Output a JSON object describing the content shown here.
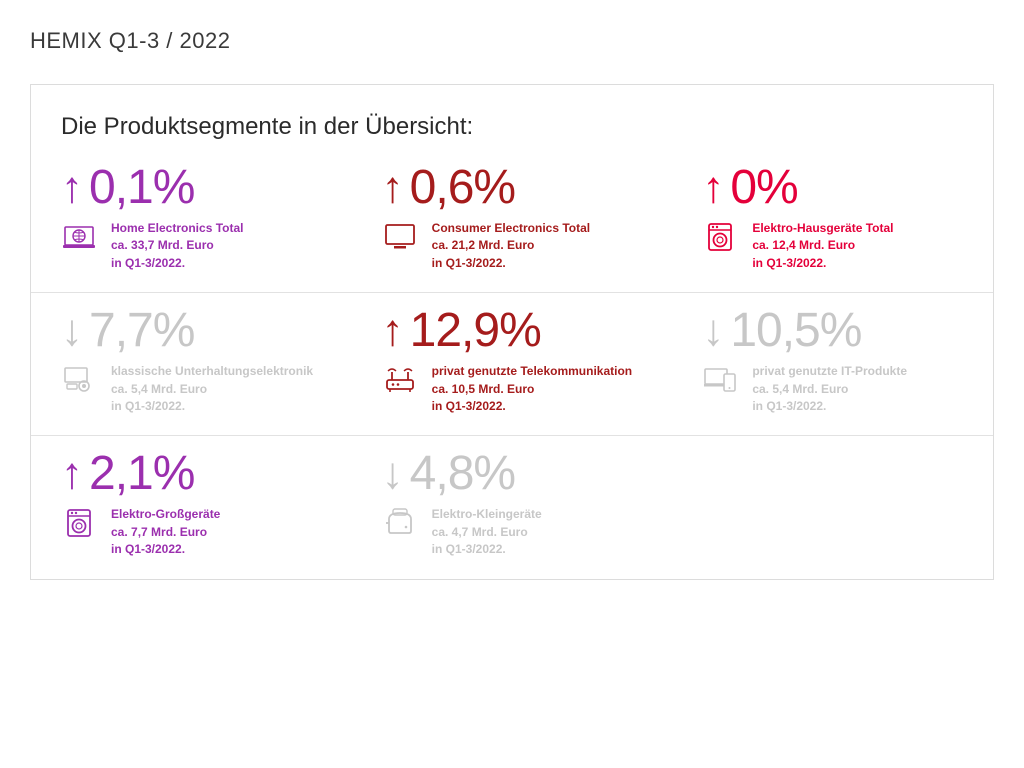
{
  "page_title": "HEMIX Q1-3 / 2022",
  "panel_title": "Die Produktsegmente in der Übersicht:",
  "colors": {
    "purple": "#9b2fae",
    "darkred": "#a51c1c",
    "pinkred": "#e4003a",
    "muted": "#c7c7c7",
    "text": "#2b2b2b",
    "border": "#dcdcdc"
  },
  "layout": {
    "type": "infographic",
    "grid": "3x3",
    "pct_fontsize": 48,
    "arrow_fontsize": 44,
    "desc_fontsize": 12,
    "title_fontsize": 24,
    "page_title_fontsize": 22
  },
  "segments": [
    {
      "id": "home-electronics-total",
      "direction": "up",
      "pct": "0,1%",
      "color": "#9b2fae",
      "icon": "globe-laptop",
      "line1": "Home Electronics Total",
      "line2": "ca. 33,7 Mrd. Euro",
      "line3": "in Q1-3/2022."
    },
    {
      "id": "consumer-electronics-total",
      "direction": "up",
      "pct": "0,6%",
      "color": "#a51c1c",
      "icon": "tv",
      "line1": "Consumer Electronics Total",
      "line2": "ca. 21,2 Mrd. Euro",
      "line3": "in Q1-3/2022."
    },
    {
      "id": "elektro-hausgeraete-total",
      "direction": "up",
      "pct": "0%",
      "color": "#e4003a",
      "icon": "washer",
      "line1": "Elektro-Hausgeräte Total",
      "line2": "ca. 12,4 Mrd. Euro",
      "line3": "in Q1-3/2022."
    },
    {
      "id": "klassische-unterhaltungs",
      "direction": "down",
      "pct": "7,7%",
      "color": "#c7c7c7",
      "icon": "projector",
      "line1": "klassische Unterhaltungselektronik",
      "line2": "ca. 5,4 Mrd. Euro",
      "line3": "in Q1-3/2022."
    },
    {
      "id": "telekom-privat",
      "direction": "up",
      "pct": "12,9%",
      "color": "#a51c1c",
      "icon": "router",
      "line1": "privat genutzte Telekommunikation",
      "line2": "ca. 10,5 Mrd. Euro",
      "line3": "in Q1-3/2022."
    },
    {
      "id": "it-privat",
      "direction": "down",
      "pct": "10,5%",
      "color": "#c7c7c7",
      "icon": "devices",
      "line1": "privat genutzte IT-Produkte",
      "line2": "ca. 5,4 Mrd. Euro",
      "line3": "in Q1-3/2022."
    },
    {
      "id": "elektro-gross",
      "direction": "up",
      "pct": "2,1%",
      "color": "#9b2fae",
      "icon": "washer",
      "line1": "Elektro-Großgeräte",
      "line2": "ca. 7,7 Mrd. Euro",
      "line3": "in Q1-3/2022."
    },
    {
      "id": "elektro-klein",
      "direction": "down",
      "pct": "4,8%",
      "color": "#c7c7c7",
      "icon": "toaster",
      "line1": "Elektro-Kleingeräte",
      "line2": "ca. 4,7 Mrd. Euro",
      "line3": "in Q1-3/2022."
    }
  ]
}
